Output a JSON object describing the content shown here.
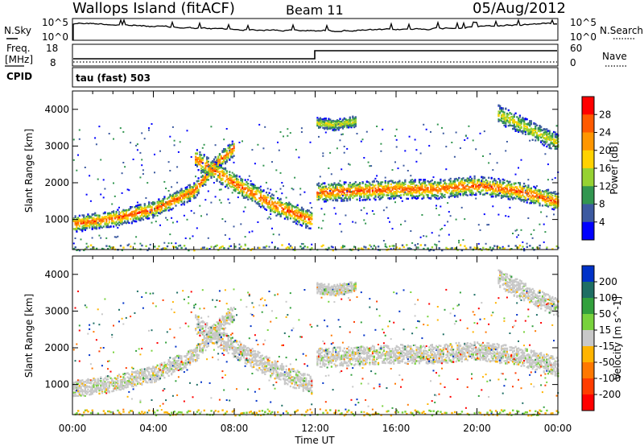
{
  "header": {
    "title": "Wallops Island (fitACF)",
    "beam": "Beam 11",
    "date": "05/Aug/2012"
  },
  "panels": {
    "nsky": {
      "label": "N.Sky",
      "right_label": "N.Search",
      "left_ticks": [
        "10^5",
        "10^0"
      ],
      "right_ticks": [
        "10^5",
        "10^0"
      ]
    },
    "freq": {
      "label": "Freq.",
      "unit": "[MHz]",
      "left_ticks": [
        "18",
        "8"
      ],
      "right_ticks": [
        "60",
        "0"
      ],
      "right_label": "Nave"
    },
    "cpid": {
      "label": "CPID",
      "mode": "tau (fast) 503"
    }
  },
  "power_colorbar": {
    "label": "Power [dB]",
    "ticks": [
      "28",
      "24",
      "20",
      "16",
      "12",
      "8",
      "4"
    ],
    "colors": [
      "#ff0000",
      "#ff5a00",
      "#ff9600",
      "#ffd200",
      "#96d232",
      "#329650",
      "#3c5aa0",
      "#0000ff"
    ]
  },
  "velocity_colorbar": {
    "label": "Velocity [m s^-1]",
    "ticks": [
      "200",
      "100",
      "50",
      "15",
      "-15",
      "-50",
      "-100",
      "-200"
    ],
    "colors": [
      "#0032c8",
      "#1e6e64",
      "#32a03c",
      "#78d23c",
      "#c8c8c8",
      "#ffb400",
      "#ff7800",
      "#ff3c00",
      "#ff0000"
    ]
  },
  "chart_data": [
    {
      "type": "heatmap",
      "name": "Power",
      "ylabel": "Slant Range [km]",
      "xlabel": "Time UT",
      "x_ticks": [
        "00:00",
        "04:00",
        "08:00",
        "12:00",
        "16:00",
        "20:00",
        "00:00"
      ],
      "y_ticks": [
        4000,
        3000,
        2000,
        1000
      ],
      "xlim": [
        0,
        24
      ],
      "ylim": [
        180,
        4500
      ],
      "scatter_bands": [
        {
          "x": [
            0,
            2,
            4,
            6,
            7,
            8
          ],
          "y": [
            900,
            1050,
            1300,
            1800,
            2500,
            3000
          ],
          "width_km": 220
        },
        {
          "x": [
            6,
            8,
            10,
            11.8
          ],
          "y": [
            2700,
            2000,
            1400,
            1000
          ],
          "width_km": 260
        },
        {
          "x": [
            12,
            14,
            16,
            18,
            20,
            22,
            24
          ],
          "y": [
            1750,
            1800,
            1850,
            1850,
            1950,
            1800,
            1500
          ],
          "width_km": 260
        },
        {
          "x": [
            21,
            22.5,
            24
          ],
          "y": [
            3900,
            3500,
            3100
          ],
          "width_km": 250
        },
        {
          "x": [
            12,
            13,
            14
          ],
          "y": [
            3650,
            3600,
            3700
          ],
          "width_km": 150
        }
      ]
    },
    {
      "type": "heatmap",
      "name": "Velocity",
      "ylabel": "Slant Range [km]",
      "xlabel": "Time UT",
      "x_ticks": [
        "00:00",
        "04:00",
        "08:00",
        "12:00",
        "16:00",
        "20:00",
        "00:00"
      ],
      "y_ticks": [
        4000,
        3000,
        2000,
        1000
      ],
      "xlim": [
        0,
        24
      ],
      "ylim": [
        180,
        4500
      ],
      "dominant_range_ms": [
        -15,
        15
      ]
    }
  ]
}
